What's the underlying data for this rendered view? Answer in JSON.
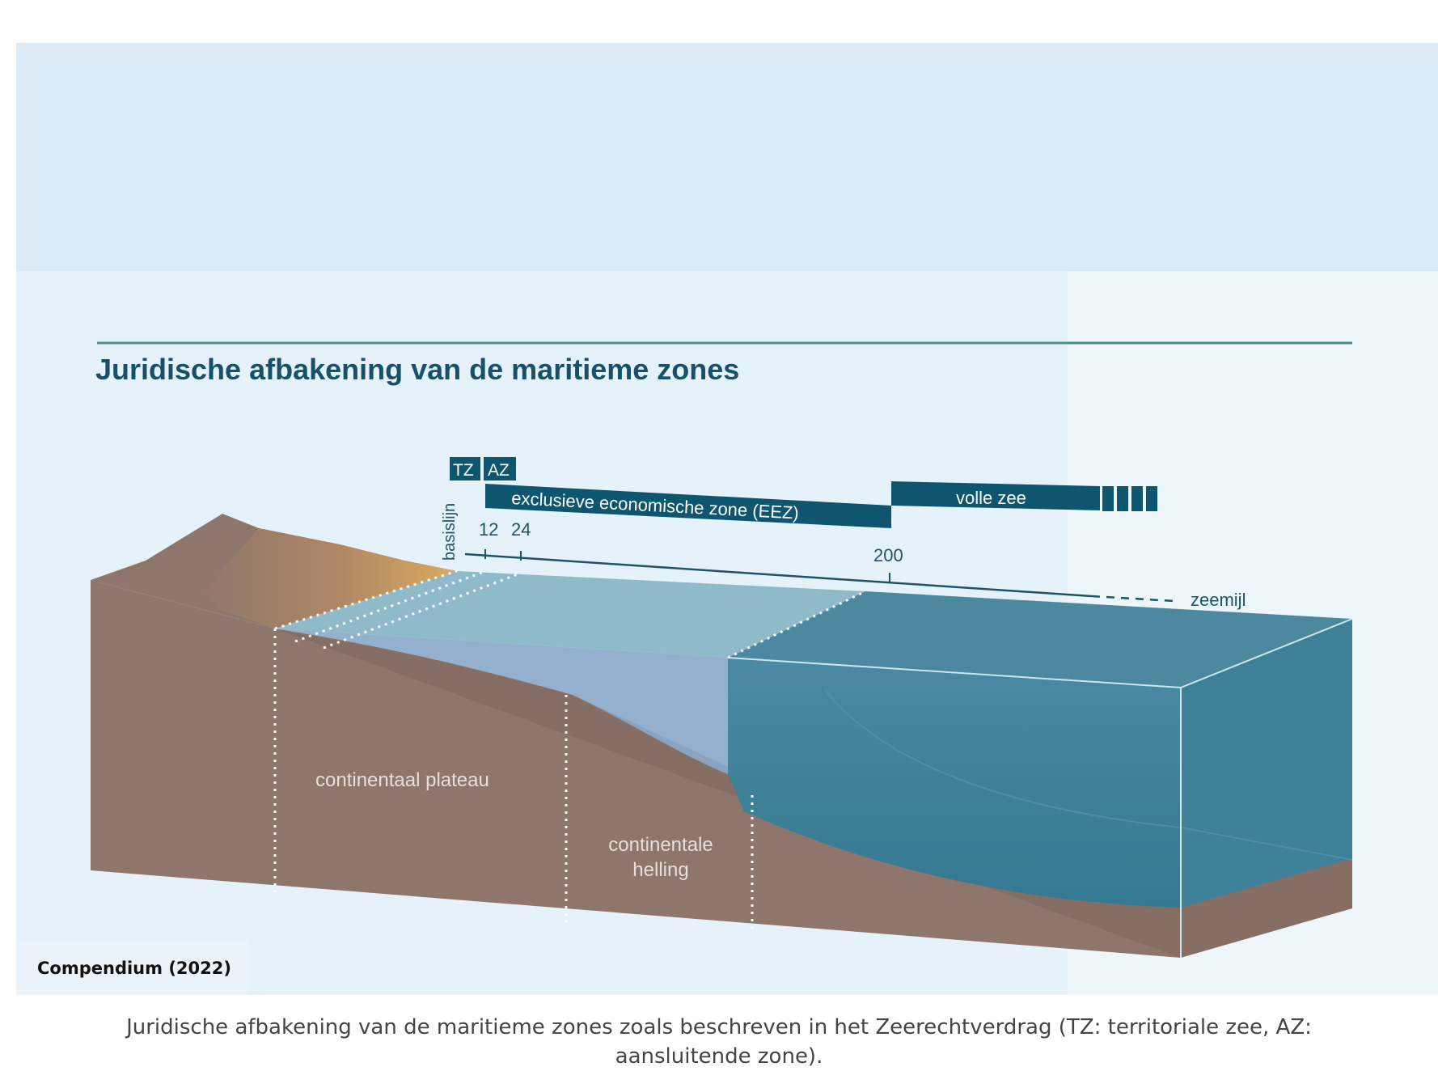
{
  "figure": {
    "title": "Juridische afbakening van de maritieme zones",
    "zone_labels": {
      "tz": "TZ",
      "az": "AZ",
      "eez": "exclusieve economische zone (EEZ)",
      "high_seas": "volle zee"
    },
    "baseline_label": "basislijn",
    "distance_ticks": [
      "12",
      "24",
      "200"
    ],
    "unit_label": "zeemijl",
    "seabed_labels": {
      "plateau": "continentaal plateau",
      "slope_line1": "continentale",
      "slope_line2": "helling"
    },
    "colors": {
      "title": "#17506a",
      "zone_bar": "#0e5670",
      "land": "#8f766d",
      "sand": "#d7a863",
      "deep_water": "#3e7f97",
      "shallow_water": "#8fb7c6"
    }
  },
  "credit": "Compendium (2022)",
  "caption": "Juridische afbakening van de maritieme zones zoals beschreven in het Zeerechtverdrag (TZ: territoriale zee, AZ: aansluitende zone)."
}
